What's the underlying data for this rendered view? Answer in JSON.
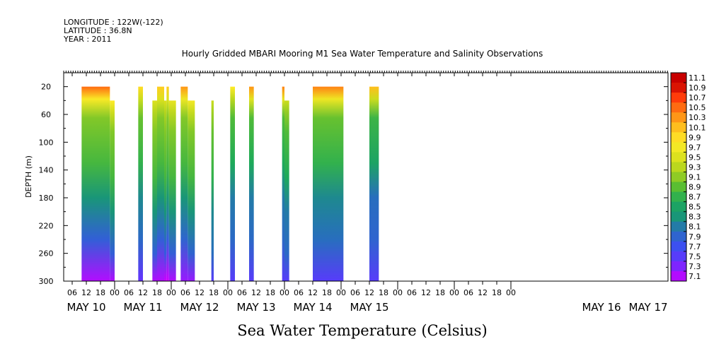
{
  "meta": {
    "longitude": "LONGITUDE : 122W(-122)",
    "latitude": "LATITUDE : 36.8N",
    "year": "YEAR : 2011"
  },
  "chart_data": {
    "type": "heatmap",
    "title": "Hourly Gridded MBARI Mooring M1 Sea Water Temperature and Salinity Observations",
    "ylabel": "DEPTH (m)",
    "xlabel": "",
    "bottom_label": "Sea Water Temperature (Celsius)",
    "y_axis": {
      "min": 0,
      "max": 300,
      "inverted": true,
      "ticks": [
        20,
        60,
        100,
        140,
        180,
        220,
        260,
        300
      ]
    },
    "x_axis": {
      "hour_ticks": [
        "06",
        "12",
        "18",
        "00",
        "06",
        "12",
        "18",
        "00",
        "06",
        "12",
        "18",
        "00",
        "06",
        "12",
        "18",
        "00",
        "06",
        "12",
        "18",
        "00",
        "06",
        "12",
        "18",
        "00",
        "06",
        "12",
        "18",
        "00",
        "06",
        "12",
        "18",
        "00"
      ],
      "day_labels": [
        "MAY 10",
        "MAY 11",
        "MAY 12",
        "MAY 13",
        "MAY 14",
        "MAY 15",
        "MAY 16",
        "MAY 17"
      ]
    },
    "colorbar": {
      "labels": [
        "11.1",
        "10.9",
        "10.7",
        "10.5",
        "10.3",
        "10.1",
        "9.9",
        "9.7",
        "9.5",
        "9.3",
        "9.1",
        "8.9",
        "8.7",
        "8.5",
        "8.3",
        "8.1",
        "7.9",
        "7.7",
        "7.5",
        "7.3",
        "7.1"
      ],
      "min": 7.1,
      "max": 11.2
    },
    "data_blocks": [
      {
        "start_hour": 10,
        "end_hour": 22,
        "top_depth": 20,
        "surface_temp": 10.6,
        "mid_temp": 8.9,
        "bottom_temp": 7.2
      },
      {
        "start_hour": 22,
        "end_hour": 24,
        "top_depth": 40,
        "surface_temp": 9.9,
        "mid_temp": 8.9,
        "bottom_temp": 7.2
      },
      {
        "start_hour": 34,
        "end_hour": 36,
        "top_depth": 20,
        "surface_temp": 10.0,
        "mid_temp": 8.8,
        "bottom_temp": 7.5
      },
      {
        "start_hour": 40,
        "end_hour": 42,
        "top_depth": 40,
        "surface_temp": 9.6,
        "mid_temp": 8.9,
        "bottom_temp": 7.2
      },
      {
        "start_hour": 42,
        "end_hour": 45,
        "top_depth": 20,
        "surface_temp": 10.1,
        "mid_temp": 8.9,
        "bottom_temp": 7.2
      },
      {
        "start_hour": 45,
        "end_hour": 46,
        "top_depth": 40,
        "surface_temp": 9.6,
        "mid_temp": 8.9,
        "bottom_temp": 7.1
      },
      {
        "start_hour": 46,
        "end_hour": 47,
        "top_depth": 20,
        "surface_temp": 10.1,
        "mid_temp": 8.9,
        "bottom_temp": 7.1
      },
      {
        "start_hour": 47,
        "end_hour": 50,
        "top_depth": 40,
        "surface_temp": 9.7,
        "mid_temp": 8.9,
        "bottom_temp": 7.2
      },
      {
        "start_hour": 52,
        "end_hour": 55,
        "top_depth": 20,
        "surface_temp": 10.4,
        "mid_temp": 8.9,
        "bottom_temp": 7.3
      },
      {
        "start_hour": 55,
        "end_hour": 58,
        "top_depth": 40,
        "surface_temp": 9.8,
        "mid_temp": 8.9,
        "bottom_temp": 7.3
      },
      {
        "start_hour": 65,
        "end_hour": 66,
        "top_depth": 40,
        "surface_temp": 9.5,
        "mid_temp": 8.8,
        "bottom_temp": 7.6
      },
      {
        "start_hour": 73,
        "end_hour": 75,
        "top_depth": 20,
        "surface_temp": 9.9,
        "mid_temp": 8.7,
        "bottom_temp": 7.6
      },
      {
        "start_hour": 81,
        "end_hour": 83,
        "top_depth": 20,
        "surface_temp": 10.4,
        "mid_temp": 8.7,
        "bottom_temp": 7.6
      },
      {
        "start_hour": 95,
        "end_hour": 96,
        "top_depth": 20,
        "surface_temp": 10.5,
        "mid_temp": 8.7,
        "bottom_temp": 7.6
      },
      {
        "start_hour": 96,
        "end_hour": 98,
        "top_depth": 40,
        "surface_temp": 9.5,
        "mid_temp": 8.7,
        "bottom_temp": 7.6
      },
      {
        "start_hour": 108,
        "end_hour": 121,
        "top_depth": 20,
        "surface_temp": 10.5,
        "mid_temp": 8.8,
        "bottom_temp": 7.6
      },
      {
        "start_hour": 132,
        "end_hour": 136,
        "top_depth": 20,
        "surface_temp": 10.2,
        "mid_temp": 8.6,
        "bottom_temp": 7.6
      }
    ]
  }
}
